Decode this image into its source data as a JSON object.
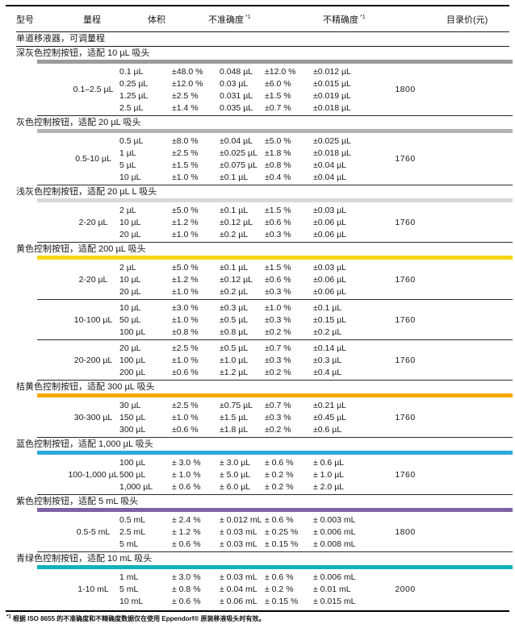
{
  "table": {
    "headers": {
      "model": "型号",
      "range": "量程",
      "volume": "体积",
      "inaccuracy": "不准确度",
      "imprecision": "不精确度",
      "price": "目录价(元)",
      "footnote_marker": "*1"
    },
    "category_header": "单道移液器，可调量程",
    "sections": [
      {
        "title": "深灰色控制按钮，适配 10 µL 吸头",
        "bar_color": "#9b9b9b",
        "groups": [
          {
            "range": "0.1–2.5 µL",
            "price": "1800",
            "rows": [
              {
                "volume": "0.1 µL",
                "inacc_pct": "±48.0 %",
                "inacc_abs": "0.048 µL",
                "imprec_pct": "±12.0 %",
                "imprec_abs": "±0.012 µL"
              },
              {
                "volume": "0.25 µL",
                "inacc_pct": "±12.0 %",
                "inacc_abs": "0.03 µL",
                "imprec_pct": "±6.0 %",
                "imprec_abs": "±0.015 µL"
              },
              {
                "volume": "1.25 µL",
                "inacc_pct": "±2.5 %",
                "inacc_abs": "0.031 µL",
                "imprec_pct": "±1.5 %",
                "imprec_abs": "±0.019 µL"
              },
              {
                "volume": "2.5 µL",
                "inacc_pct": "±1.4 %",
                "inacc_abs": "0.035 µL",
                "imprec_pct": "±0.7 %",
                "imprec_abs": "±0.018 µL"
              }
            ]
          }
        ]
      },
      {
        "title": "灰色控制按钮，适配 20 µL 吸头",
        "bar_color": "#b3b3b3",
        "groups": [
          {
            "range": "0.5-10 µL",
            "price": "1760",
            "rows": [
              {
                "volume": "0.5 µL",
                "inacc_pct": "±8.0 %",
                "inacc_abs": "±0.04 µL",
                "imprec_pct": "±5.0 %",
                "imprec_abs": "±0.025 µL"
              },
              {
                "volume": "1 µL",
                "inacc_pct": "±2.5 %",
                "inacc_abs": "±0.025 µL",
                "imprec_pct": "±1.8 %",
                "imprec_abs": "±0.018 µL"
              },
              {
                "volume": "5 µL",
                "inacc_pct": "±1.5 %",
                "inacc_abs": "±0.075 µL",
                "imprec_pct": "±0.8 %",
                "imprec_abs": "±0.04 µL"
              },
              {
                "volume": "10 µL",
                "inacc_pct": "±1.0 %",
                "inacc_abs": "±0.1 µL",
                "imprec_pct": "±0.4 %",
                "imprec_abs": "±0.04 µL"
              }
            ]
          }
        ]
      },
      {
        "title": "浅灰色控制按钮，适配 20 µL L 吸头",
        "bar_color": "#d9d9d9",
        "groups": [
          {
            "range": "2-20 µL",
            "price": "1760",
            "rows": [
              {
                "volume": "2 µL",
                "inacc_pct": "±5.0 %",
                "inacc_abs": "±0.1 µL",
                "imprec_pct": "±1.5 %",
                "imprec_abs": "±0.03 µL"
              },
              {
                "volume": "10 µL",
                "inacc_pct": "±1.2 %",
                "inacc_abs": "±0.12 µL",
                "imprec_pct": "±0.6 %",
                "imprec_abs": "±0.06 µL"
              },
              {
                "volume": "20 µL",
                "inacc_pct": "±1.0 %",
                "inacc_abs": "±0.2 µL",
                "imprec_pct": "±0.3 %",
                "imprec_abs": "±0.06 µL"
              }
            ]
          }
        ]
      },
      {
        "title": "黄色控制按钮，适配 200 µL 吸头",
        "bar_color": "#f4d612",
        "groups": [
          {
            "range": "2-20 µL",
            "price": "1760",
            "rows": [
              {
                "volume": "2 µL",
                "inacc_pct": "±5.0 %",
                "inacc_abs": "±0.1 µL",
                "imprec_pct": "±1.5 %",
                "imprec_abs": "±0.03 µL"
              },
              {
                "volume": "10 µL",
                "inacc_pct": "±1.2 %",
                "inacc_abs": "±0.12 µL",
                "imprec_pct": "±0.6 %",
                "imprec_abs": "±0.06 µL"
              },
              {
                "volume": "20 µL",
                "inacc_pct": "±1.0 %",
                "inacc_abs": "±0.2 µL",
                "imprec_pct": "±0.3 %",
                "imprec_abs": "±0.06 µL"
              }
            ]
          },
          {
            "range": "10-100 µL",
            "price": "1760",
            "rows": [
              {
                "volume": "10 µL",
                "inacc_pct": "±3.0 %",
                "inacc_abs": "±0.3 µL",
                "imprec_pct": "±1.0 %",
                "imprec_abs": "±0.1 µL"
              },
              {
                "volume": "50 µL",
                "inacc_pct": "±1.0 %",
                "inacc_abs": "±0.5 µL",
                "imprec_pct": "±0.3 %",
                "imprec_abs": "±0.15 µL"
              },
              {
                "volume": "100 µL",
                "inacc_pct": "±0.8 %",
                "inacc_abs": "±0.8 µL",
                "imprec_pct": "±0.2 %",
                "imprec_abs": "±0.2 µL"
              }
            ]
          },
          {
            "range": "20-200 µL",
            "price": "1760",
            "rows": [
              {
                "volume": "20 µL",
                "inacc_pct": "±2.5 %",
                "inacc_abs": "±0.5 µL",
                "imprec_pct": "±0.7 %",
                "imprec_abs": "±0.14 µL"
              },
              {
                "volume": "100 µL",
                "inacc_pct": "±1.0 %",
                "inacc_abs": "±1.0 µL",
                "imprec_pct": "±0.3 %",
                "imprec_abs": "±0.3 µL"
              },
              {
                "volume": "200 µL",
                "inacc_pct": "±0.6 %",
                "inacc_abs": "±1.2 µL",
                "imprec_pct": "±0.2 %",
                "imprec_abs": "±0.4 µL"
              }
            ]
          }
        ]
      },
      {
        "title": "桔黄色控制按钮，适配 300 µL 吸头",
        "bar_color": "#f6a800",
        "groups": [
          {
            "range": "30-300 µL",
            "price": "1760",
            "rows": [
              {
                "volume": "30 µL",
                "inacc_pct": "±2.5 %",
                "inacc_abs": "±0.75 µL",
                "imprec_pct": "±0.7 %",
                "imprec_abs": "±0.21 µL"
              },
              {
                "volume": "150 µL",
                "inacc_pct": "±1.0 %",
                "inacc_abs": "±1.5 µL",
                "imprec_pct": "±0.3 %",
                "imprec_abs": "±0.45 µL"
              },
              {
                "volume": "300 µL",
                "inacc_pct": "±0.6 %",
                "inacc_abs": "±1.8 µL",
                "imprec_pct": "±0.2 %",
                "imprec_abs": "±0.6 µL"
              }
            ]
          }
        ]
      },
      {
        "title": "蓝色控制按钮，适配 1,000 µL 吸头",
        "bar_color": "#2fa8dc",
        "groups": [
          {
            "range": "100-1,000 µL",
            "price": "1760",
            "rows": [
              {
                "volume": "100 µL",
                "inacc_pct": "± 3.0 %",
                "inacc_abs": "± 3.0 µL",
                "imprec_pct": "± 0.6 %",
                "imprec_abs": "± 0.6 µL"
              },
              {
                "volume": "500 µL",
                "inacc_pct": "± 1.0 %",
                "inacc_abs": "± 5.0 µL",
                "imprec_pct": "± 0.2 %",
                "imprec_abs": "± 1.0 µL"
              },
              {
                "volume": "1,000 µL",
                "inacc_pct": "± 0.6 %",
                "inacc_abs": "± 6.0 µL",
                "imprec_pct": "± 0.2 %",
                "imprec_abs": "± 2.0 µL"
              }
            ]
          }
        ]
      },
      {
        "title": "紫色控制按钮，适配 5 mL 吸头",
        "bar_color": "#7d63a5",
        "groups": [
          {
            "range": "0.5-5 mL",
            "price": "1800",
            "rows": [
              {
                "volume": "0.5 mL",
                "inacc_pct": "± 2.4 %",
                "inacc_abs": "± 0.012 mL",
                "imprec_pct": "± 0.6 %",
                "imprec_abs": "± 0.003 mL"
              },
              {
                "volume": "2.5 mL",
                "inacc_pct": "± 1.2 %",
                "inacc_abs": "± 0.03 mL",
                "imprec_pct": "± 0.25 %",
                "imprec_abs": "± 0.006 mL"
              },
              {
                "volume": "5 mL",
                "inacc_pct": "± 0.6 %",
                "inacc_abs": "± 0.03 mL",
                "imprec_pct": "± 0.15 %",
                "imprec_abs": "± 0.008 mL"
              }
            ]
          }
        ]
      },
      {
        "title": "青绿色控制按钮，适配 10 mL 吸头",
        "bar_color": "#12b2b8",
        "groups": [
          {
            "range": "1-10 mL",
            "price": "2000",
            "rows": [
              {
                "volume": "1 mL",
                "inacc_pct": "± 3.0 %",
                "inacc_abs": "± 0.03 mL",
                "imprec_pct": "± 0.6 %",
                "imprec_abs": "± 0.006 mL"
              },
              {
                "volume": "5 mL",
                "inacc_pct": "± 0.8 %",
                "inacc_abs": "± 0.04 mL",
                "imprec_pct": "± 0.2 %",
                "imprec_abs": "± 0.01 mL"
              },
              {
                "volume": "10 mL",
                "inacc_pct": "± 0.6 %",
                "inacc_abs": "± 0.06 mL",
                "imprec_pct": "± 0.15 %",
                "imprec_abs": "± 0.015 mL"
              }
            ]
          }
        ]
      }
    ]
  },
  "footnote": {
    "marker": "*1",
    "text": "根据 ISO 8655 的不准确度和不精确度数据仅在使用 Eppendorf® 原装移液吸头时有效。"
  }
}
